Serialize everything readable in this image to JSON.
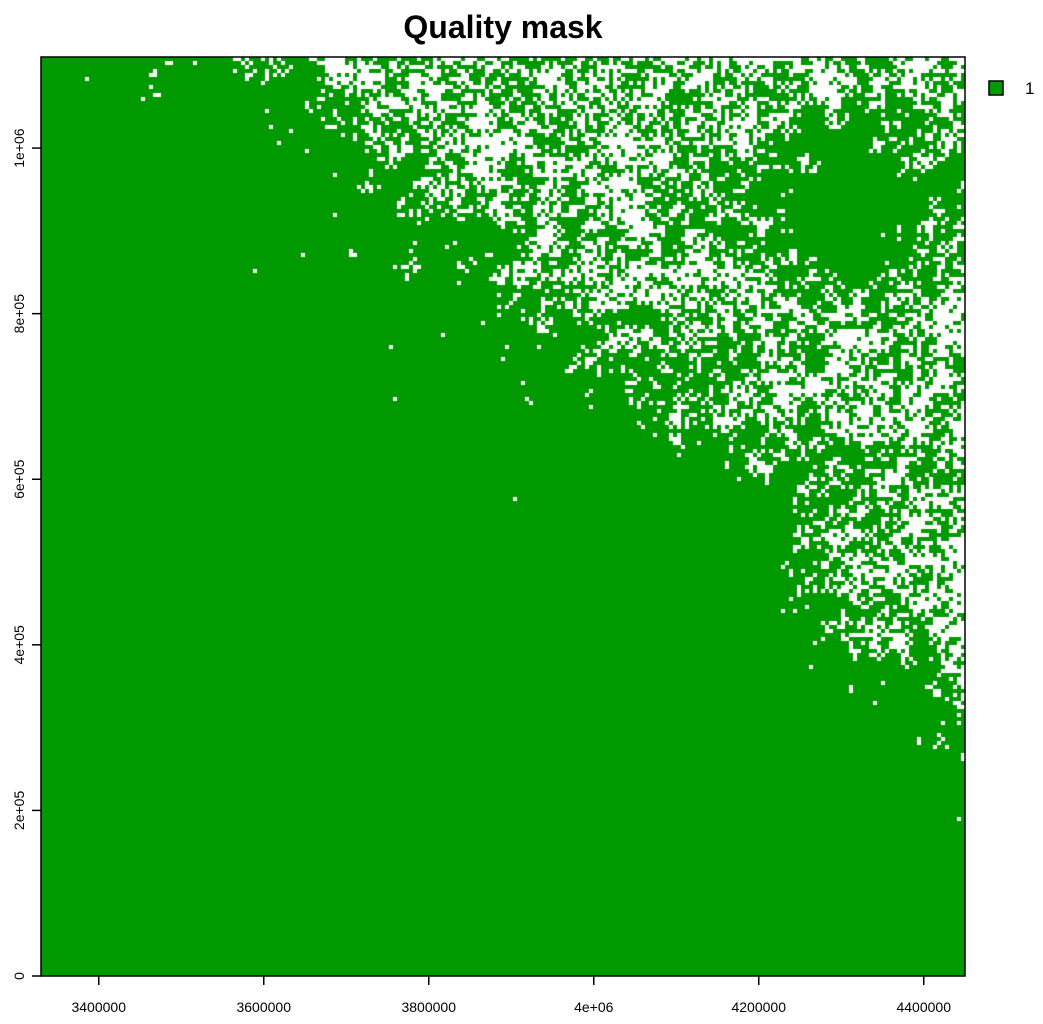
{
  "chart_data": {
    "type": "heatmap",
    "title": "Quality mask",
    "xlabel": "",
    "ylabel": "",
    "xlim": [
      3330000,
      4450000
    ],
    "ylim": [
      0,
      1110000
    ],
    "x_ticks": [
      {
        "value": 3400000,
        "label": "3400000"
      },
      {
        "value": 3600000,
        "label": "3600000"
      },
      {
        "value": 3800000,
        "label": "3800000"
      },
      {
        "value": 4000000,
        "label": "4e+06"
      },
      {
        "value": 4200000,
        "label": "4200000"
      },
      {
        "value": 4400000,
        "label": "4400000"
      }
    ],
    "y_ticks": [
      {
        "value": 0,
        "label": "0"
      },
      {
        "value": 200000,
        "label": "2e+05"
      },
      {
        "value": 400000,
        "label": "4e+05"
      },
      {
        "value": 600000,
        "label": "6e+05"
      },
      {
        "value": 800000,
        "label": "8e+05"
      },
      {
        "value": 1000000,
        "label": "1e+06"
      }
    ],
    "legend": {
      "placement": "right",
      "entries": [
        {
          "label": "1",
          "value": 1,
          "color": "#009a00"
        }
      ]
    },
    "colors": {
      "mask_value": "#009a00",
      "no_data": "#ffffff"
    },
    "grid": false
  }
}
